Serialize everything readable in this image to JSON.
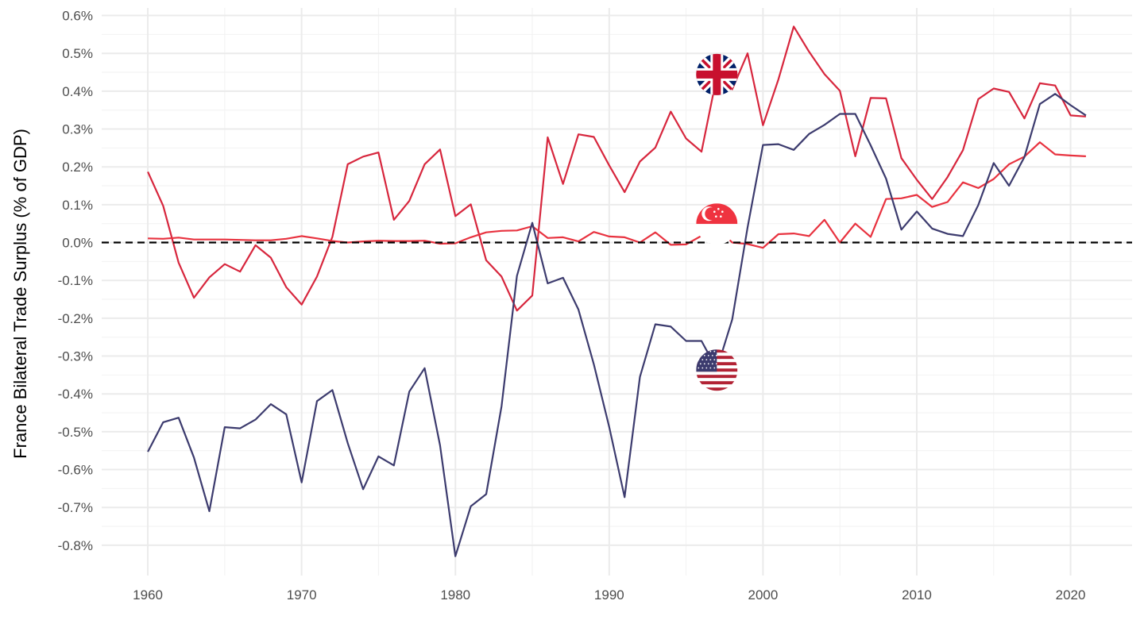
{
  "chart_data": {
    "type": "line",
    "title": "",
    "xlabel": "",
    "ylabel": "France Bilateral Trade Surplus (% of GDP)",
    "xlim": [
      1957,
      2024
    ],
    "ylim": [
      -0.0088,
      0.0062
    ],
    "x_ticks": [
      1960,
      1970,
      1980,
      1990,
      2000,
      2010,
      2020
    ],
    "y_ticks": [
      -0.008,
      -0.007,
      -0.006,
      -0.005,
      -0.004,
      -0.003,
      -0.002,
      -0.001,
      0.0,
      0.001,
      0.002,
      0.003,
      0.004,
      0.005,
      0.006
    ],
    "y_tick_labels": [
      "-0.8%",
      "-0.7%",
      "-0.6%",
      "-0.5%",
      "-0.4%",
      "-0.3%",
      "-0.2%",
      "-0.1%",
      "0.0%",
      "0.1%",
      "0.2%",
      "0.3%",
      "0.4%",
      "0.5%",
      "0.6%"
    ],
    "grid": true,
    "legend": "flag icons placed on lines",
    "zero_line": {
      "y": 0,
      "style": "dashed",
      "color": "#000000"
    },
    "series": [
      {
        "flag": "united-kingdom-flag",
        "color": "#d7263d",
        "x": [
          1960,
          1961,
          1962,
          1963,
          1964,
          1965,
          1966,
          1967,
          1968,
          1969,
          1970,
          1971,
          1972,
          1973,
          1974,
          1975,
          1976,
          1977,
          1978,
          1979,
          1980,
          1981,
          1982,
          1983,
          1984,
          1985,
          1986,
          1987,
          1988,
          1989,
          1990,
          1991,
          1992,
          1993,
          1994,
          1995,
          1996,
          1997,
          1998,
          1999,
          2000,
          2001,
          2002,
          2003,
          2004,
          2005,
          2006,
          2007,
          2008,
          2009,
          2010,
          2011,
          2012,
          2013,
          2014,
          2015,
          2016,
          2017,
          2018,
          2019,
          2020,
          2021
        ],
        "y": [
          0.00187,
          0.00097,
          -0.00053,
          -0.00146,
          -0.00092,
          -0.00057,
          -0.00077,
          -7e-05,
          -0.0004,
          -0.00118,
          -0.00164,
          -0.0009,
          0.00015,
          0.00207,
          0.00227,
          0.00238,
          0.0006,
          0.0011,
          0.00207,
          0.00246,
          0.0007,
          0.00101,
          -0.00047,
          -0.0009,
          -0.0018,
          -0.0014,
          0.00278,
          0.00155,
          0.00286,
          0.00279,
          0.00204,
          0.00133,
          0.00214,
          0.00251,
          0.00346,
          0.00275,
          0.0024,
          0.0044,
          0.00405,
          0.005,
          0.0031,
          0.00431,
          0.00571,
          0.00504,
          0.00445,
          0.00401,
          0.00228,
          0.00382,
          0.00381,
          0.00223,
          0.00166,
          0.00115,
          0.00173,
          0.00244,
          0.00379,
          0.00407,
          0.00398,
          0.00328,
          0.00421,
          0.00415,
          0.00336,
          0.00333
        ]
      },
      {
        "flag": "singapore-flag",
        "color": "#e8323f",
        "x": [
          1960,
          1961,
          1962,
          1963,
          1964,
          1965,
          1966,
          1967,
          1968,
          1969,
          1970,
          1971,
          1972,
          1973,
          1974,
          1975,
          1976,
          1977,
          1978,
          1979,
          1980,
          1981,
          1982,
          1983,
          1984,
          1985,
          1986,
          1987,
          1988,
          1989,
          1990,
          1991,
          1992,
          1993,
          1994,
          1995,
          1996,
          1997,
          1998,
          1999,
          2000,
          2001,
          2002,
          2003,
          2004,
          2005,
          2006,
          2007,
          2008,
          2009,
          2010,
          2011,
          2012,
          2013,
          2014,
          2015,
          2016,
          2017,
          2018,
          2019,
          2020,
          2021
        ],
        "y": [
          0.00011,
          0.0001,
          0.00013,
          8e-05,
          8e-05,
          8e-05,
          7e-05,
          6e-05,
          6e-05,
          0.0001,
          0.00017,
          0.00011,
          4e-05,
          0.0,
          3e-05,
          5e-05,
          4e-05,
          4e-05,
          5e-05,
          -3e-05,
          -2e-05,
          0.00014,
          0.00027,
          0.00031,
          0.00032,
          0.00043,
          0.00012,
          0.00014,
          3e-05,
          0.00028,
          0.00016,
          0.00014,
          0.0,
          0.00027,
          -6e-05,
          -5e-05,
          0.00018,
          0.0004,
          0.0,
          -4e-05,
          -0.00014,
          0.00022,
          0.00024,
          0.00017,
          0.0006,
          0.0,
          0.0005,
          0.00015,
          0.00115,
          0.00117,
          0.00126,
          0.00094,
          0.00107,
          0.00159,
          0.00144,
          0.00168,
          0.00207,
          0.00227,
          0.00265,
          0.00233,
          0.0023,
          0.00228
        ]
      },
      {
        "flag": "united-states-flag",
        "color": "#3c3b6e",
        "x": [
          1960,
          1961,
          1962,
          1963,
          1964,
          1965,
          1966,
          1967,
          1968,
          1969,
          1970,
          1971,
          1972,
          1973,
          1974,
          1975,
          1976,
          1977,
          1978,
          1979,
          1980,
          1981,
          1982,
          1983,
          1984,
          1985,
          1986,
          1987,
          1988,
          1989,
          1990,
          1991,
          1992,
          1993,
          1994,
          1995,
          1996,
          1997,
          1998,
          1999,
          2000,
          2001,
          2002,
          2003,
          2004,
          2005,
          2006,
          2007,
          2008,
          2009,
          2010,
          2011,
          2012,
          2013,
          2014,
          2015,
          2016,
          2017,
          2018,
          2019,
          2020,
          2021
        ],
        "y": [
          -0.00553,
          -0.00475,
          -0.00463,
          -0.00568,
          -0.0071,
          -0.00488,
          -0.00491,
          -0.00468,
          -0.00427,
          -0.00454,
          -0.00634,
          -0.00419,
          -0.0039,
          -0.0053,
          -0.00652,
          -0.00565,
          -0.00589,
          -0.00394,
          -0.00332,
          -0.00536,
          -0.00829,
          -0.00697,
          -0.00665,
          -0.00433,
          -0.00088,
          0.00052,
          -0.00108,
          -0.00093,
          -0.00177,
          -0.00322,
          -0.00487,
          -0.00673,
          -0.00355,
          -0.00216,
          -0.00222,
          -0.0026,
          -0.0026,
          -0.00335,
          -0.00203,
          0.0004,
          0.00258,
          0.0026,
          0.00245,
          0.00287,
          0.00311,
          0.0034,
          0.0034,
          0.00257,
          0.00169,
          0.00034,
          0.00082,
          0.00037,
          0.00023,
          0.00017,
          0.00099,
          0.0021,
          0.0015,
          0.00226,
          0.00366,
          0.00393,
          0.00363,
          0.00336
        ]
      }
    ],
    "flag_markers": [
      {
        "flag": "united-kingdom-flag",
        "x": 1997,
        "y": 0.00444
      },
      {
        "flag": "singapore-flag",
        "x": 1997,
        "y": 0.00049
      },
      {
        "flag": "united-states-flag",
        "x": 1997,
        "y": -0.00337
      }
    ]
  }
}
